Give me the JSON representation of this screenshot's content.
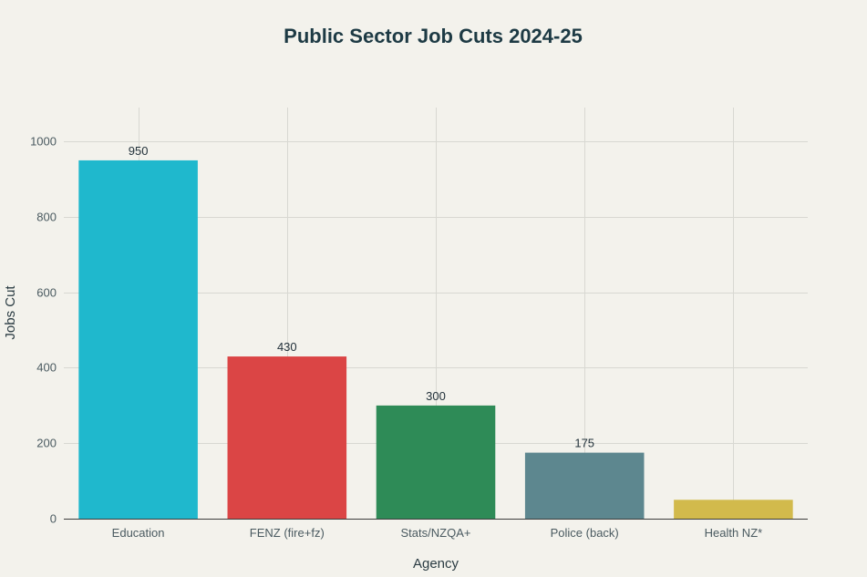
{
  "chart_data": {
    "type": "bar",
    "title": "Public Sector Job Cuts 2024-25",
    "xlabel": "Agency",
    "ylabel": "Jobs Cut",
    "categories": [
      "Education",
      "FENZ (fire+fz)",
      "Stats/NZQA+",
      "Police (back)",
      "Health NZ*"
    ],
    "values": [
      950,
      430,
      300,
      175,
      50
    ],
    "data_labels": [
      "950",
      "430",
      "300",
      "175",
      ""
    ],
    "colors": [
      "#1fb8cd",
      "#db4545",
      "#2e8b57",
      "#5d878f",
      "#d2ba4c"
    ],
    "ylim": [
      0,
      1090
    ],
    "yticks": [
      0,
      200,
      400,
      600,
      800,
      1000
    ],
    "grid": true,
    "legend": "none"
  }
}
